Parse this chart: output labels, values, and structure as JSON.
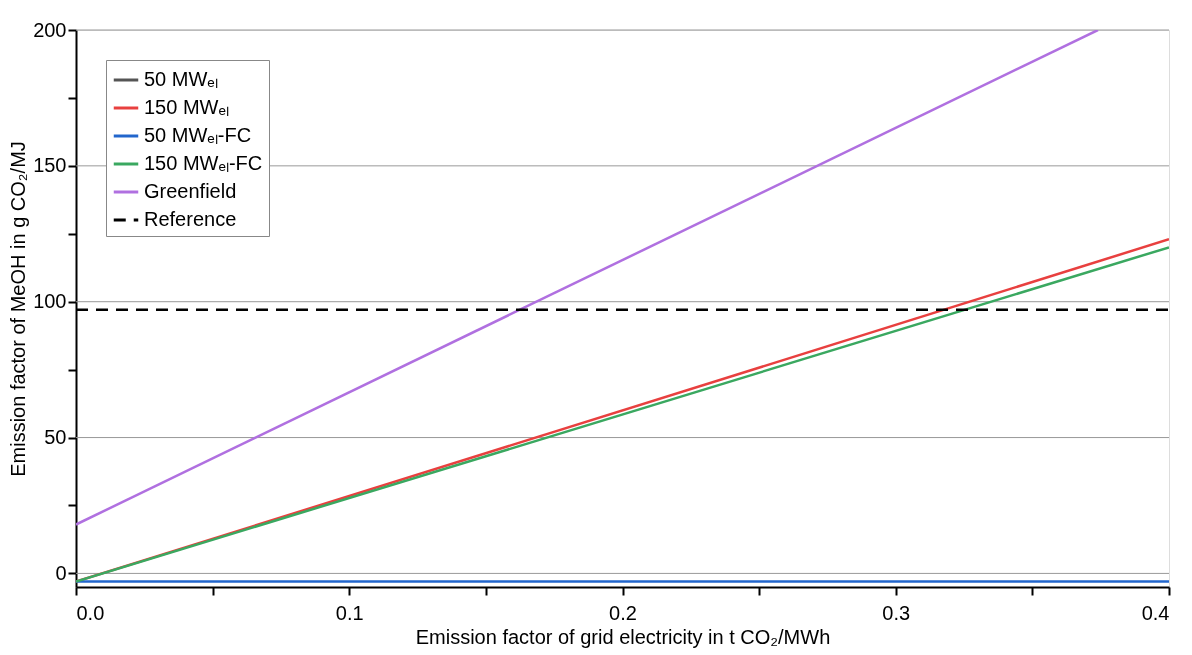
{
  "chart_data": {
    "type": "line",
    "xlabel": "Emission factor of grid electricity in t CO₂/MWh",
    "ylabel": "Emission factor of MeOH in g CO₂/MJ",
    "xlim": [
      0,
      0.4
    ],
    "xticks": [
      {
        "value": 0,
        "label": "0.0"
      },
      {
        "value": 0.05,
        "label": null
      },
      {
        "value": 0.1,
        "label": "0.1"
      },
      {
        "value": 0.15,
        "label": null
      },
      {
        "value": 0.2,
        "label": "0.2"
      },
      {
        "value": 0.25,
        "label": null
      },
      {
        "value": 0.3,
        "label": "0.3"
      },
      {
        "value": 0.35,
        "label": null
      },
      {
        "value": 0.4,
        "label": "0.4"
      }
    ],
    "ylim": [
      -5,
      200
    ],
    "yticks": [
      0,
      {
        "value": 25,
        "label": null
      },
      50,
      {
        "value": 75,
        "label": null
      },
      100,
      {
        "value": 125,
        "label": null
      },
      150,
      {
        "value": 175,
        "label": null
      },
      200
    ],
    "grid": "y",
    "legend": "top left",
    "series": [
      {
        "name": "50 MWₑₗ",
        "color": "#555555"
      },
      {
        "name": "150 MWₑₗ",
        "color": "#e8403f",
        "x": [
          0,
          0.4
        ],
        "values": [
          -3,
          123
        ]
      },
      {
        "name": "50 MWₑₗ-FC",
        "color": "#2266cc",
        "x": [
          0,
          0.4
        ],
        "values": [
          -3,
          -3
        ]
      },
      {
        "name": "150 MWₑₗ-FC",
        "color": "#3aa860",
        "x": [
          0,
          0.4
        ],
        "values": [
          -3,
          120
        ]
      },
      {
        "name": "Greenfield",
        "color": "#b070e0",
        "x": [
          0,
          0.374
        ],
        "values": [
          18,
          200
        ]
      },
      {
        "name": "Reference",
        "color": "#000000",
        "line_style": "dashed",
        "x": [
          0,
          0.4
        ],
        "values": [
          97,
          97
        ]
      }
    ]
  }
}
